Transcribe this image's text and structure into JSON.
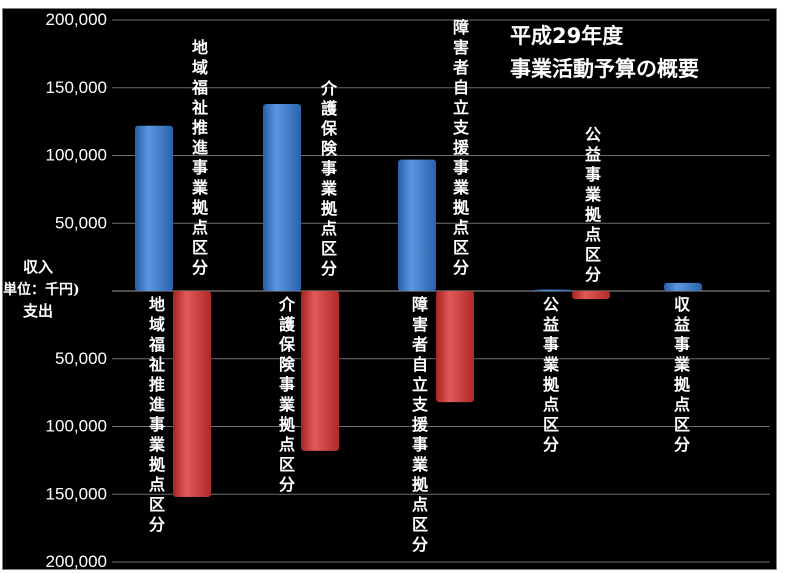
{
  "chart_data": {
    "type": "bar",
    "title_lines": [
      "平成29年度",
      "事業活動予算の概要"
    ],
    "y_axis": {
      "ticks": [
        {
          "value": 200000,
          "label": "200,000"
        },
        {
          "value": 150000,
          "label": "150,000"
        },
        {
          "value": 100000,
          "label": "100,000"
        },
        {
          "value": 50000,
          "label": "50,000"
        },
        {
          "value": -50000,
          "label": "50,000"
        },
        {
          "value": -100000,
          "label": "100,000"
        },
        {
          "value": -150000,
          "label": "150,000"
        },
        {
          "value": -200000,
          "label": "200,000"
        }
      ],
      "ylim": [
        -200000,
        200000
      ],
      "center_label_lines": [
        "収入",
        "(単位：千円)",
        "支出"
      ]
    },
    "grid": true,
    "categories": [
      {
        "income_label": "地域福祉推進事業拠点区分",
        "expense_label": "地域福祉推進事業拠点区分"
      },
      {
        "income_label": "介護保険事業拠点区分",
        "expense_label": "介護保険事業拠点区分"
      },
      {
        "income_label": "障害者自立支援事業拠点区分",
        "expense_label": "障害者自立支援事業拠点区分"
      },
      {
        "income_label": "公益事業拠点区分",
        "expense_label": "公益事業拠点区分"
      },
      {
        "income_label": "",
        "expense_label": "収益事業拠点区分"
      }
    ],
    "series": [
      {
        "key": "income",
        "values": [
          122000,
          138000,
          97000,
          1000,
          6000
        ],
        "color": "#3b78c8"
      },
      {
        "key": "expense",
        "values": [
          152000,
          118000,
          82000,
          6000,
          0
        ],
        "color": "#d03a3a"
      }
    ]
  }
}
